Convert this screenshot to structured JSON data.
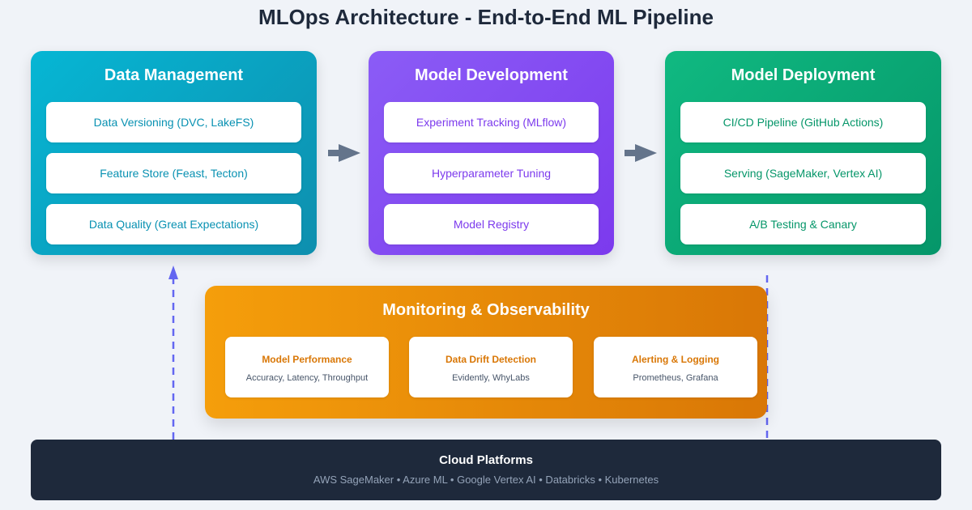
{
  "title": "MLOps Architecture - End-to-End ML Pipeline",
  "stages": [
    {
      "title": "Data Management",
      "items": [
        "Data Versioning (DVC, LakeFS)",
        "Feature Store (Feast, Tecton)",
        "Data Quality (Great Expectations)"
      ]
    },
    {
      "title": "Model Development",
      "items": [
        "Experiment Tracking (MLflow)",
        "Hyperparameter Tuning",
        "Model Registry"
      ]
    },
    {
      "title": "Model Deployment",
      "items": [
        "CI/CD Pipeline (GitHub Actions)",
        "Serving (SageMaker, Vertex AI)",
        "A/B Testing & Canary"
      ]
    }
  ],
  "monitoring": {
    "title": "Monitoring & Observability",
    "cards": [
      {
        "title": "Model Performance",
        "subtitle": "Accuracy, Latency, Throughput"
      },
      {
        "title": "Data Drift Detection",
        "subtitle": "Evidently, WhyLabs"
      },
      {
        "title": "Alerting & Logging",
        "subtitle": "Prometheus, Grafana"
      }
    ]
  },
  "cloud": {
    "title": "Cloud Platforms",
    "subtitle": "AWS SageMaker • Azure ML • Google Vertex AI • Databricks • Kubernetes"
  },
  "colors": {
    "data": "#06b6d4",
    "dev": "#8b5cf6",
    "deploy": "#10b981",
    "monitor": "#f59e0b",
    "cloud": "#1e293b",
    "arrow": "#64748b",
    "feedback": "#6366f1"
  }
}
